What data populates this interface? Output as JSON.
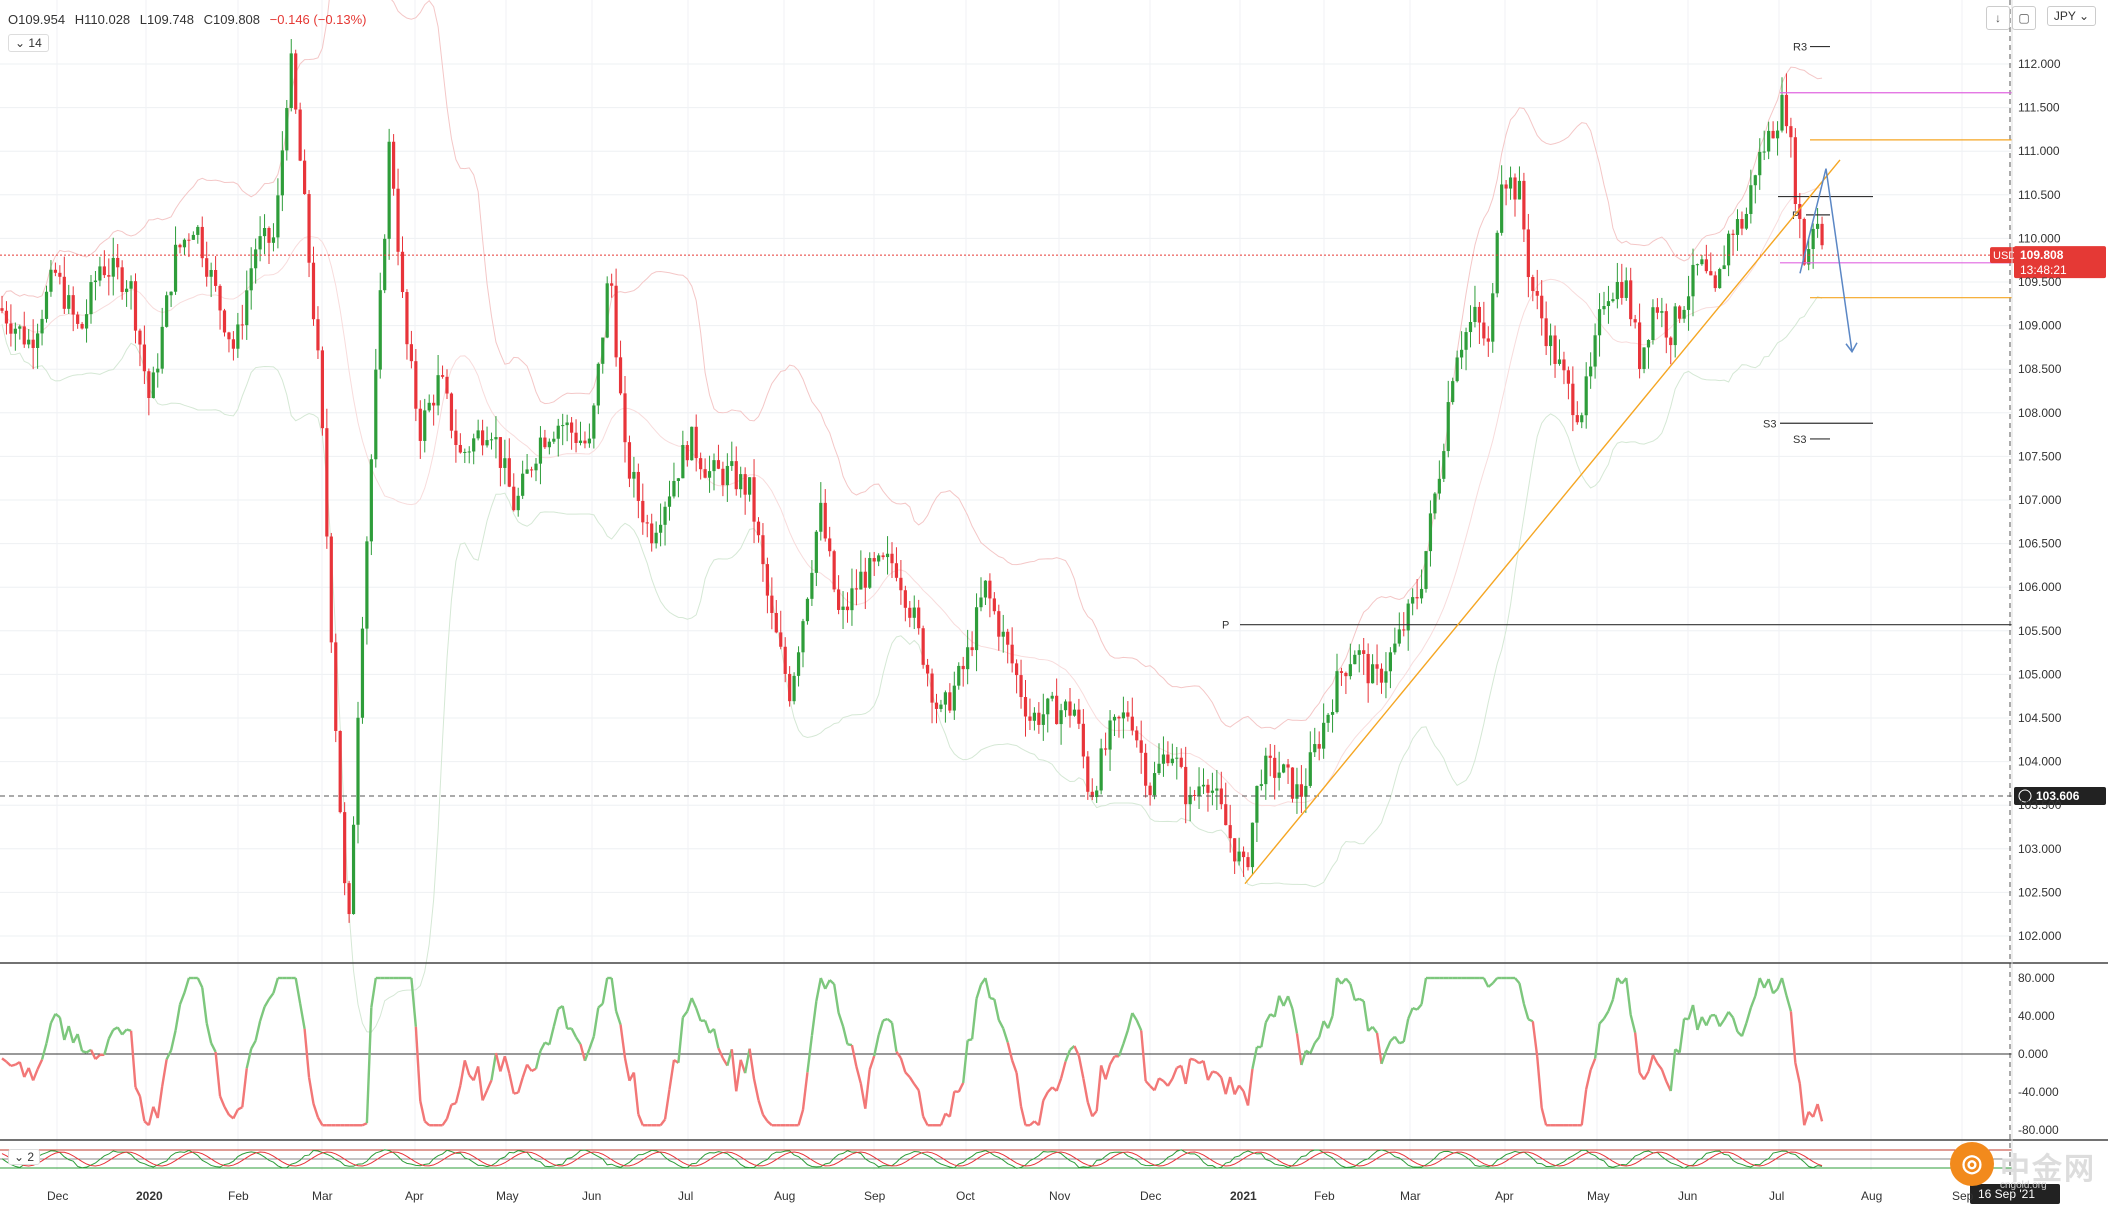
{
  "ohlc": {
    "open": "O109.954",
    "high": "H110.028",
    "low": "L109.748",
    "close": "C109.808",
    "change": "−0.146 (−0.13%)"
  },
  "indicator_label": "14",
  "indicator2_label": "2",
  "currency": "JPY",
  "symbol_tag": "USDJPY",
  "last_price": "109.808",
  "countdown": "13:48:21",
  "crosshair_price": "103.606",
  "crosshair_date": "16 Sep '21",
  "pivot_labels": {
    "r3": "R3",
    "p_left": "P",
    "p_right": "P",
    "s3_a": "S3",
    "s3_b": "S3"
  },
  "price_ticks": [
    "112.000",
    "111.500",
    "111.000",
    "110.500",
    "110.000",
    "109.500",
    "109.000",
    "108.500",
    "108.000",
    "107.500",
    "107.000",
    "106.500",
    "106.000",
    "105.500",
    "105.000",
    "104.500",
    "104.000",
    "103.500",
    "103.000",
    "102.500",
    "102.000"
  ],
  "osc_ticks": [
    "80.000",
    "40.000",
    "0.000",
    "-40.000",
    "-80.000"
  ],
  "time_ticks": [
    "Dec",
    "2020",
    "Feb",
    "Mar",
    "Apr",
    "May",
    "Jun",
    "Jul",
    "Aug",
    "Sep",
    "Oct",
    "Nov",
    "Dec",
    "2021",
    "Feb",
    "Mar",
    "Apr",
    "May",
    "Jun",
    "Jul",
    "Aug",
    "Sep"
  ],
  "watermark": {
    "glyph": "◎",
    "name": "中金网",
    "sub": "cngold.org"
  },
  "colors": {
    "up": "#2e9d3a",
    "down": "#e8343a",
    "trend": "#f5a623",
    "magenta": "#e066e0",
    "arrow": "#5b87c5"
  }
}
